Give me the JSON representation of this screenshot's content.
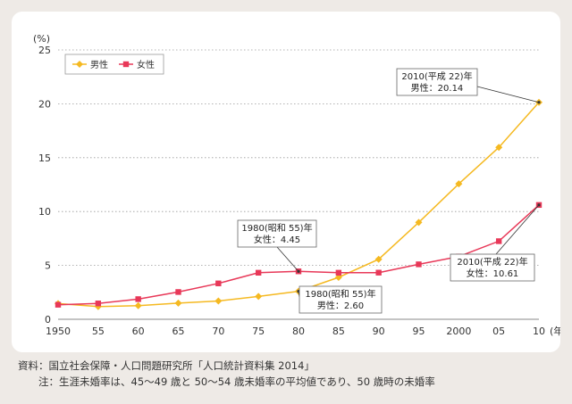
{
  "chart_data": {
    "type": "line",
    "title": "",
    "xlabel": "",
    "ylabel": "",
    "y_unit": "(%)",
    "x_unit": "(年)",
    "x": [
      "1950",
      "55",
      "60",
      "65",
      "70",
      "75",
      "80",
      "85",
      "90",
      "95",
      "2000",
      "05",
      "10"
    ],
    "ylim": [
      0,
      25
    ],
    "yticks": [
      "0",
      "5",
      "10",
      "15",
      "20",
      "25"
    ],
    "grid": "horizontal dotted",
    "legend_position": "top-left",
    "series": [
      {
        "name": "男性",
        "color": "#f5b921",
        "marker": "diamond",
        "values": [
          1.46,
          1.18,
          1.26,
          1.5,
          1.7,
          2.12,
          2.6,
          3.89,
          5.57,
          8.99,
          12.57,
          15.96,
          20.14
        ]
      },
      {
        "name": "女性",
        "color": "#e83858",
        "marker": "square",
        "values": [
          1.35,
          1.47,
          1.87,
          2.53,
          3.33,
          4.32,
          4.45,
          4.32,
          4.33,
          5.1,
          5.82,
          7.25,
          10.61
        ]
      }
    ],
    "annotations": [
      {
        "series": 0,
        "index": 6,
        "lines": [
          "1980(昭和 55)年",
          "男性：2.60"
        ]
      },
      {
        "series": 1,
        "index": 6,
        "lines": [
          "1980(昭和 55)年",
          "女性：4.45"
        ]
      },
      {
        "series": 0,
        "index": 12,
        "lines": [
          "2010(平成 22)年",
          "男性：20.14"
        ]
      },
      {
        "series": 1,
        "index": 12,
        "lines": [
          "2010(平成 22)年",
          "女性：10.61"
        ]
      }
    ]
  },
  "notes": {
    "source": "資料：国立社会保障・人口問題研究所「人口統計資料集 2014」",
    "note": "注：生涯未婚率は、45～49 歳と 50～54 歳未婚率の平均値であり、50 歳時の未婚率"
  }
}
